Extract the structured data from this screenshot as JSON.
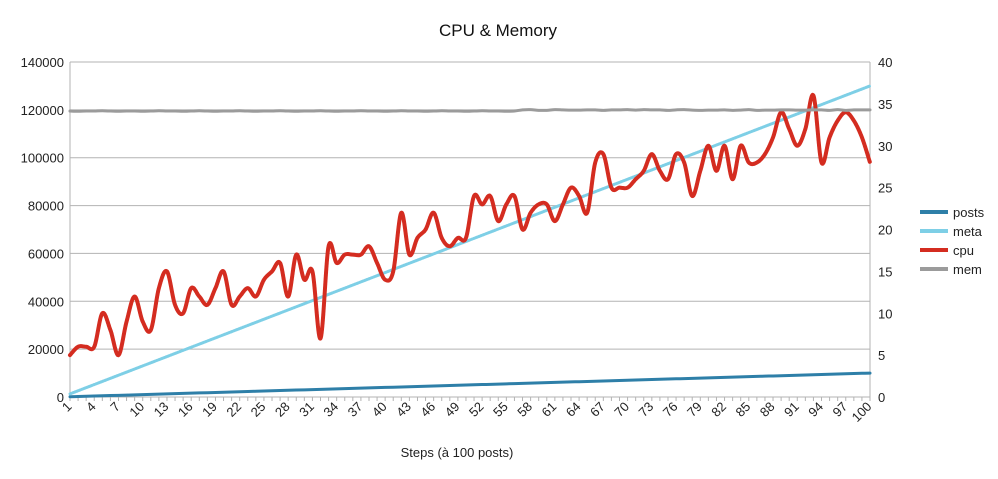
{
  "chart_data": {
    "type": "line",
    "title": "CPU & Memory",
    "xlabel": "Steps (à 100 posts)",
    "ylabel": "",
    "y2label": "",
    "x": [
      1,
      2,
      3,
      4,
      5,
      6,
      7,
      8,
      9,
      10,
      11,
      12,
      13,
      14,
      15,
      16,
      17,
      18,
      19,
      20,
      21,
      22,
      23,
      24,
      25,
      26,
      27,
      28,
      29,
      30,
      31,
      32,
      33,
      34,
      35,
      36,
      37,
      38,
      39,
      40,
      41,
      42,
      43,
      44,
      45,
      46,
      47,
      48,
      49,
      50,
      51,
      52,
      53,
      54,
      55,
      56,
      57,
      58,
      59,
      60,
      61,
      62,
      63,
      64,
      65,
      66,
      67,
      68,
      69,
      70,
      71,
      72,
      73,
      74,
      75,
      76,
      77,
      78,
      79,
      80,
      81,
      82,
      83,
      84,
      85,
      86,
      87,
      88,
      89,
      90,
      91,
      92,
      93,
      94,
      95,
      96,
      97,
      98,
      99,
      100
    ],
    "x_tick_labels": [
      "1",
      "4",
      "7",
      "10",
      "13",
      "16",
      "19",
      "22",
      "25",
      "28",
      "31",
      "34",
      "37",
      "40",
      "43",
      "46",
      "49",
      "52",
      "55",
      "58",
      "61",
      "64",
      "67",
      "70",
      "73",
      "76",
      "79",
      "82",
      "85",
      "88",
      "91",
      "94",
      "97",
      "100"
    ],
    "ylim": [
      0,
      140000
    ],
    "y_ticks": [
      "0",
      "20000",
      "40000",
      "60000",
      "80000",
      "100000",
      "120000",
      "140000"
    ],
    "y2lim": [
      0,
      40
    ],
    "y2_ticks": [
      "0",
      "5",
      "10",
      "15",
      "20",
      "25",
      "30",
      "35",
      "40"
    ],
    "grid": true,
    "legend_position": "right",
    "series": [
      {
        "name": "posts",
        "axis": "left",
        "color": "#2e7fa8",
        "style": "solid",
        "formula": "100*x",
        "values": [
          100,
          200,
          300,
          400,
          500,
          600,
          700,
          800,
          900,
          1000,
          1100,
          1200,
          1300,
          1400,
          1500,
          1600,
          1700,
          1800,
          1900,
          2000,
          2100,
          2200,
          2300,
          2400,
          2500,
          2600,
          2700,
          2800,
          2900,
          3000,
          3100,
          3200,
          3300,
          3400,
          3500,
          3600,
          3700,
          3800,
          3900,
          4000,
          4100,
          4200,
          4300,
          4400,
          4500,
          4600,
          4700,
          4800,
          4900,
          5000,
          5100,
          5200,
          5300,
          5400,
          5500,
          5600,
          5700,
          5800,
          5900,
          6000,
          6100,
          6200,
          6300,
          6400,
          6500,
          6600,
          6700,
          6800,
          6900,
          7000,
          7100,
          7200,
          7300,
          7400,
          7500,
          7600,
          7700,
          7800,
          7900,
          8000,
          8100,
          8200,
          8300,
          8400,
          8500,
          8600,
          8700,
          8800,
          8900,
          9000,
          9100,
          9200,
          9300,
          9400,
          9500,
          9600,
          9700,
          9800,
          9900,
          10000
        ]
      },
      {
        "name": "meta",
        "axis": "left",
        "color": "#7ecfe6",
        "style": "dashed",
        "values": [
          1300,
          2600,
          3900,
          5200,
          6500,
          7800,
          9100,
          10400,
          11700,
          13000,
          14300,
          15600,
          16900,
          18200,
          19500,
          20800,
          22100,
          23400,
          24700,
          26000,
          27300,
          28600,
          29900,
          31200,
          32500,
          33800,
          35100,
          36400,
          37700,
          39000,
          40300,
          41600,
          42900,
          44200,
          45500,
          46800,
          48100,
          49400,
          50700,
          52000,
          53300,
          54600,
          55900,
          57200,
          58500,
          59800,
          61100,
          62400,
          63700,
          65000,
          66300,
          67600,
          68900,
          70200,
          71500,
          72800,
          74100,
          75400,
          76700,
          78000,
          79300,
          80600,
          81900,
          83200,
          84500,
          85800,
          87100,
          88400,
          89700,
          91000,
          92300,
          93600,
          94900,
          96200,
          97500,
          98800,
          100100,
          101400,
          102700,
          104000,
          105300,
          106600,
          107900,
          109200,
          110500,
          111800,
          113100,
          114400,
          115700,
          117000,
          118300,
          119600,
          120900,
          122200,
          123500,
          124800,
          126100,
          127400,
          128700,
          130000
        ]
      },
      {
        "name": "cpu",
        "axis": "right",
        "color": "#d42c20",
        "style": "dashed",
        "values": [
          5,
          6,
          6,
          6,
          10,
          8,
          5,
          9,
          12,
          9,
          8,
          13,
          15,
          11,
          10,
          13,
          12,
          11,
          13,
          15,
          11,
          12,
          13,
          12,
          14,
          15,
          16,
          12,
          17,
          14,
          15,
          7,
          18,
          16,
          17,
          17,
          17,
          18,
          16,
          14,
          15,
          22,
          17,
          19,
          20,
          22,
          19,
          18,
          19,
          19,
          24,
          23,
          24,
          21,
          23,
          24,
          20,
          22,
          23,
          23,
          21,
          23,
          25,
          24,
          22,
          28,
          29,
          25,
          25,
          25,
          26,
          27,
          29,
          27,
          26,
          29,
          28,
          24,
          27,
          30,
          27,
          30,
          26,
          30,
          28,
          28,
          29,
          31,
          34,
          32,
          30,
          32,
          36,
          28,
          31,
          33,
          34,
          33,
          31,
          28
        ]
      },
      {
        "name": "mem",
        "axis": "left",
        "color": "#9b9b9b",
        "style": "solid",
        "values": [
          119500,
          119400,
          119500,
          119500,
          119600,
          119500,
          119400,
          119500,
          119500,
          119400,
          119500,
          119600,
          119500,
          119500,
          119400,
          119500,
          119600,
          119500,
          119400,
          119500,
          119500,
          119600,
          119500,
          119400,
          119500,
          119500,
          119600,
          119500,
          119400,
          119500,
          119500,
          119600,
          119500,
          119400,
          119500,
          119500,
          119600,
          119500,
          119500,
          119400,
          119500,
          119600,
          119500,
          119500,
          119400,
          119500,
          119600,
          119500,
          119500,
          119400,
          119500,
          119600,
          119500,
          119500,
          119400,
          119500,
          120000,
          120100,
          119800,
          119800,
          120100,
          120000,
          119900,
          119900,
          120000,
          120000,
          119800,
          120000,
          120000,
          120100,
          119900,
          120100,
          120000,
          120000,
          119800,
          120000,
          120100,
          119900,
          119800,
          119900,
          119900,
          120000,
          119800,
          119900,
          120100,
          119800,
          119900,
          119900,
          120000,
          120000,
          119900,
          119900,
          120000,
          120000,
          119800,
          120100,
          119800,
          120000,
          120000,
          120000
        ]
      }
    ]
  }
}
